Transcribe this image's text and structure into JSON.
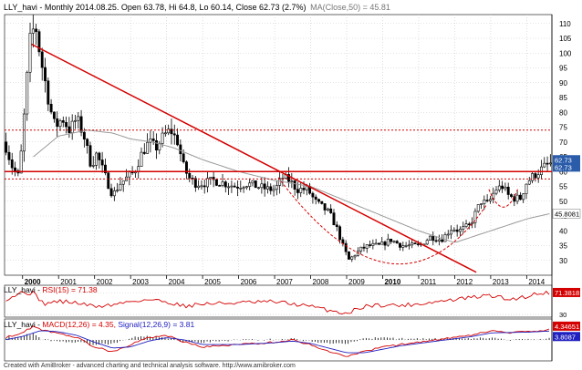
{
  "main_title": "LLY_havi - Monthly 2014.08.25. Open 63.78, Hi 64.8, Lo 60.14, Close 62.73 (2.7%)",
  "ma_label": "MA(Close,50) = 45.81",
  "rsi_label_prefix": "LLY_havi - ",
  "rsi_label": "RSI(15) = 71.38",
  "macd_label_prefix": "LLY_havi - ",
  "macd_label": "MACD(12,26) = 4.35,",
  "signal_label": "Signal(12,26,9) = 3.81",
  "footer": "Created with AmiBroker - advanced charting and technical analysis software. http://www.amibroker.com",
  "colors": {
    "price": "#000000",
    "ma": "#9a9a9a",
    "trendline": "#d40000",
    "support": "#d40000",
    "dotted": "#d40000",
    "grid": "#c8c8c8",
    "rsi": "#d40000",
    "macd": "#d40000",
    "signal": "#2020c0",
    "histogram": "#000000",
    "label_close": "#2a5caa",
    "label_ma": "#ffffff"
  },
  "chart_data": [
    {
      "type": "candlestick",
      "title": "LLY_havi - Monthly 2014.08.25. Open 63.78, Hi 64.8, Lo 60.14, Close 62.73 (2.7%)",
      "x_range": [
        "1999-07",
        "2014-08"
      ],
      "ylim": [
        25,
        113
      ],
      "y_ticks": [
        30,
        35,
        40,
        45,
        50,
        55,
        60,
        65,
        70,
        75,
        80,
        85,
        90,
        95,
        100,
        105,
        110
      ],
      "x_ticks": [
        {
          "label": "2000",
          "year": 2000
        },
        {
          "label": "2001",
          "year": 2001
        },
        {
          "label": "2002",
          "year": 2002
        },
        {
          "label": "2003",
          "year": 2003
        },
        {
          "label": "2004",
          "year": 2004
        },
        {
          "label": "2005",
          "year": 2005
        },
        {
          "label": "2006",
          "year": 2006
        },
        {
          "label": "2007",
          "year": 2007
        },
        {
          "label": "2008",
          "year": 2008
        },
        {
          "label": "2009",
          "year": 2009
        },
        {
          "label": "2010",
          "year": 2010
        },
        {
          "label": "2011",
          "year": 2011
        },
        {
          "label": "2012",
          "year": 2012
        },
        {
          "label": "2013",
          "year": 2013
        },
        {
          "label": "2014",
          "year": 2014
        }
      ],
      "price_anchors": [
        [
          1999.5,
          70
        ],
        [
          1999.7,
          62
        ],
        [
          1999.9,
          58
        ],
        [
          2000.0,
          72
        ],
        [
          2000.1,
          88
        ],
        [
          2000.2,
          104
        ],
        [
          2000.35,
          110
        ],
        [
          2000.5,
          98
        ],
        [
          2000.6,
          92
        ],
        [
          2000.75,
          82
        ],
        [
          2000.9,
          75
        ],
        [
          2001.1,
          78
        ],
        [
          2001.3,
          74
        ],
        [
          2001.5,
          78
        ],
        [
          2001.7,
          72
        ],
        [
          2001.9,
          62
        ],
        [
          2002.05,
          66
        ],
        [
          2002.3,
          58
        ],
        [
          2002.5,
          52
        ],
        [
          2002.7,
          56
        ],
        [
          2002.9,
          58
        ],
        [
          2003.1,
          60
        ],
        [
          2003.3,
          66
        ],
        [
          2003.5,
          70
        ],
        [
          2003.7,
          68
        ],
        [
          2003.9,
          72
        ],
        [
          2004.1,
          74
        ],
        [
          2004.3,
          70
        ],
        [
          2004.45,
          62
        ],
        [
          2004.6,
          58
        ],
        [
          2004.8,
          56
        ],
        [
          2005.0,
          56
        ],
        [
          2005.3,
          57
        ],
        [
          2005.6,
          56
        ],
        [
          2005.9,
          55
        ],
        [
          2006.2,
          56
        ],
        [
          2006.5,
          55
        ],
        [
          2006.8,
          54
        ],
        [
          2007.0,
          54
        ],
        [
          2007.2,
          58
        ],
        [
          2007.4,
          57
        ],
        [
          2007.6,
          54
        ],
        [
          2007.9,
          54
        ],
        [
          2008.1,
          50
        ],
        [
          2008.3,
          48
        ],
        [
          2008.5,
          46
        ],
        [
          2008.7,
          41
        ],
        [
          2008.9,
          34
        ],
        [
          2009.05,
          30
        ],
        [
          2009.2,
          32
        ],
        [
          2009.4,
          34
        ],
        [
          2009.6,
          35
        ],
        [
          2009.9,
          35
        ],
        [
          2010.2,
          37
        ],
        [
          2010.5,
          35
        ],
        [
          2010.8,
          35
        ],
        [
          2011.0,
          35
        ],
        [
          2011.3,
          38
        ],
        [
          2011.6,
          37
        ],
        [
          2011.9,
          41
        ],
        [
          2012.1,
          40
        ],
        [
          2012.4,
          42
        ],
        [
          2012.7,
          50
        ],
        [
          2012.9,
          49
        ],
        [
          2013.1,
          54
        ],
        [
          2013.3,
          55
        ],
        [
          2013.45,
          52
        ],
        [
          2013.6,
          51
        ],
        [
          2013.8,
          51
        ],
        [
          2013.95,
          56
        ],
        [
          2014.1,
          58
        ],
        [
          2014.3,
          60
        ],
        [
          2014.5,
          62
        ],
        [
          2014.65,
          62.73
        ]
      ],
      "ma_anchors": [
        [
          2000.3,
          65
        ],
        [
          2001.0,
          72
        ],
        [
          2001.8,
          74
        ],
        [
          2002.5,
          73
        ],
        [
          2003.0,
          71
        ],
        [
          2003.6,
          70
        ],
        [
          2004.2,
          68
        ],
        [
          2005.0,
          64
        ],
        [
          2006.0,
          60
        ],
        [
          2007.0,
          57
        ],
        [
          2008.0,
          55
        ],
        [
          2009.0,
          50
        ],
        [
          2010.0,
          45
        ],
        [
          2011.0,
          40
        ],
        [
          2011.5,
          38
        ],
        [
          2012.0,
          36
        ],
        [
          2012.5,
          38
        ],
        [
          2013.0,
          40
        ],
        [
          2013.5,
          42
        ],
        [
          2014.0,
          44
        ],
        [
          2014.65,
          45.81
        ]
      ],
      "trendline": {
        "from": [
          2000.25,
          103
        ],
        "to": [
          2012.6,
          26
        ]
      },
      "horizontal_lines": [
        {
          "value": 60,
          "style": "solid"
        },
        {
          "value": 57.5,
          "style": "dotted"
        },
        {
          "value": 74,
          "style": "dotted"
        }
      ],
      "arcs": [
        {
          "from": [
            2007.1,
            58
          ],
          "bottom": [
            2010.2,
            29
          ],
          "to": [
            2012.9,
            49
          ]
        },
        {
          "from": [
            2012.95,
            54
          ],
          "bottom": [
            2013.35,
            48
          ],
          "to": [
            2013.75,
            54
          ]
        }
      ],
      "value_labels": [
        "62.73",
        "62.73",
        "45.8081"
      ],
      "value_label_levels": [
        64,
        61.5,
        45.8
      ]
    },
    {
      "type": "line",
      "title": "RSI(15) = 71.38",
      "ylim": [
        25,
        85
      ],
      "y_ticks": [
        70,
        30
      ],
      "value_label": "71.3818",
      "series": [
        {
          "name": "RSI(15)",
          "anchors": [
            [
              1999.5,
              58
            ],
            [
              2000.0,
              72
            ],
            [
              2000.3,
              70
            ],
            [
              2000.6,
              50
            ],
            [
              2001.0,
              55
            ],
            [
              2001.5,
              52
            ],
            [
              2002.0,
              45
            ],
            [
              2002.5,
              48
            ],
            [
              2003.0,
              55
            ],
            [
              2003.5,
              58
            ],
            [
              2004.0,
              54
            ],
            [
              2004.5,
              46
            ],
            [
              2005.0,
              50
            ],
            [
              2006.0,
              52
            ],
            [
              2007.0,
              54
            ],
            [
              2007.5,
              50
            ],
            [
              2008.0,
              45
            ],
            [
              2008.5,
              38
            ],
            [
              2009.0,
              32
            ],
            [
              2009.5,
              46
            ],
            [
              2010.0,
              48
            ],
            [
              2010.5,
              47
            ],
            [
              2011.0,
              50
            ],
            [
              2011.5,
              54
            ],
            [
              2012.0,
              58
            ],
            [
              2012.5,
              62
            ],
            [
              2013.0,
              66
            ],
            [
              2013.5,
              58
            ],
            [
              2014.0,
              64
            ],
            [
              2014.3,
              70
            ],
            [
              2014.65,
              71.38
            ]
          ]
        }
      ]
    },
    {
      "type": "line",
      "title": "MACD(12,26) = 4.35, Signal(12,26,9) = 3.81",
      "ylim": [
        -9,
        9
      ],
      "value_labels": [
        "4.34651",
        "3.8087"
      ],
      "series": [
        {
          "name": "MACD(12,26)",
          "anchors": [
            [
              1999.5,
              1
            ],
            [
              2000.0,
              3
            ],
            [
              2000.3,
              6
            ],
            [
              2000.6,
              4
            ],
            [
              2001.0,
              3
            ],
            [
              2001.5,
              1
            ],
            [
              2002.0,
              -3
            ],
            [
              2002.5,
              -5
            ],
            [
              2003.0,
              -2
            ],
            [
              2003.5,
              1
            ],
            [
              2004.0,
              2
            ],
            [
              2004.5,
              -1
            ],
            [
              2005.0,
              -3
            ],
            [
              2006.0,
              -2
            ],
            [
              2007.0,
              -1
            ],
            [
              2007.5,
              0
            ],
            [
              2008.0,
              -2
            ],
            [
              2008.5,
              -5
            ],
            [
              2009.0,
              -7
            ],
            [
              2009.5,
              -5
            ],
            [
              2010.0,
              -3
            ],
            [
              2010.5,
              -2
            ],
            [
              2011.0,
              -1
            ],
            [
              2011.5,
              0
            ],
            [
              2012.0,
              1
            ],
            [
              2012.5,
              2
            ],
            [
              2013.0,
              4
            ],
            [
              2013.5,
              3
            ],
            [
              2014.0,
              3.5
            ],
            [
              2014.65,
              4.35
            ]
          ]
        },
        {
          "name": "Signal(12,26,9)",
          "anchors": [
            [
              1999.5,
              0
            ],
            [
              2000.0,
              1.5
            ],
            [
              2000.5,
              4
            ],
            [
              2001.0,
              3.5
            ],
            [
              2001.5,
              2
            ],
            [
              2002.0,
              -1
            ],
            [
              2002.5,
              -3.5
            ],
            [
              2003.0,
              -3
            ],
            [
              2003.5,
              -0.5
            ],
            [
              2004.0,
              1
            ],
            [
              2004.5,
              0
            ],
            [
              2005.0,
              -2
            ],
            [
              2006.0,
              -2
            ],
            [
              2007.0,
              -1.2
            ],
            [
              2007.5,
              -0.5
            ],
            [
              2008.0,
              -1.5
            ],
            [
              2008.5,
              -3.5
            ],
            [
              2009.0,
              -5.5
            ],
            [
              2009.5,
              -5.5
            ],
            [
              2010.0,
              -4
            ],
            [
              2010.5,
              -2.5
            ],
            [
              2011.0,
              -1.5
            ],
            [
              2011.5,
              -0.5
            ],
            [
              2012.0,
              0.5
            ],
            [
              2012.5,
              1.5
            ],
            [
              2013.0,
              3
            ],
            [
              2013.5,
              3.2
            ],
            [
              2014.0,
              3.3
            ],
            [
              2014.65,
              3.81
            ]
          ]
        }
      ]
    }
  ]
}
